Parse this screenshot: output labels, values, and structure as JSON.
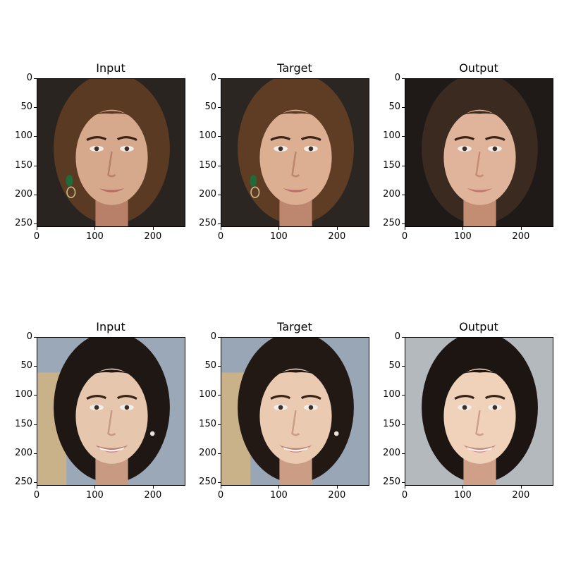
{
  "figure": {
    "rows": [
      {
        "panels": [
          {
            "title": "Input",
            "image": "face-woman-long-brown-hair-green-earrings",
            "tone": "input"
          },
          {
            "title": "Target",
            "image": "face-woman-long-brown-hair-green-earrings",
            "tone": "target"
          },
          {
            "title": "Output",
            "image": "face-woman-dark-hair-generated",
            "tone": "output"
          }
        ]
      },
      {
        "panels": [
          {
            "title": "Input",
            "image": "face-woman-dark-hair-smiling",
            "tone": "input"
          },
          {
            "title": "Target",
            "image": "face-woman-dark-hair-smiling",
            "tone": "target"
          },
          {
            "title": "Output",
            "image": "face-woman-dark-hair-smiling-generated",
            "tone": "output"
          }
        ]
      }
    ],
    "axis": {
      "y_ticks": [
        "0",
        "50",
        "100",
        "150",
        "200",
        "250"
      ],
      "x_ticks": [
        "0",
        "100",
        "200"
      ],
      "y_tick_values": [
        0,
        50,
        100,
        150,
        200,
        250
      ],
      "x_tick_values": [
        0,
        100,
        200
      ],
      "extent": [
        0,
        256
      ]
    }
  }
}
